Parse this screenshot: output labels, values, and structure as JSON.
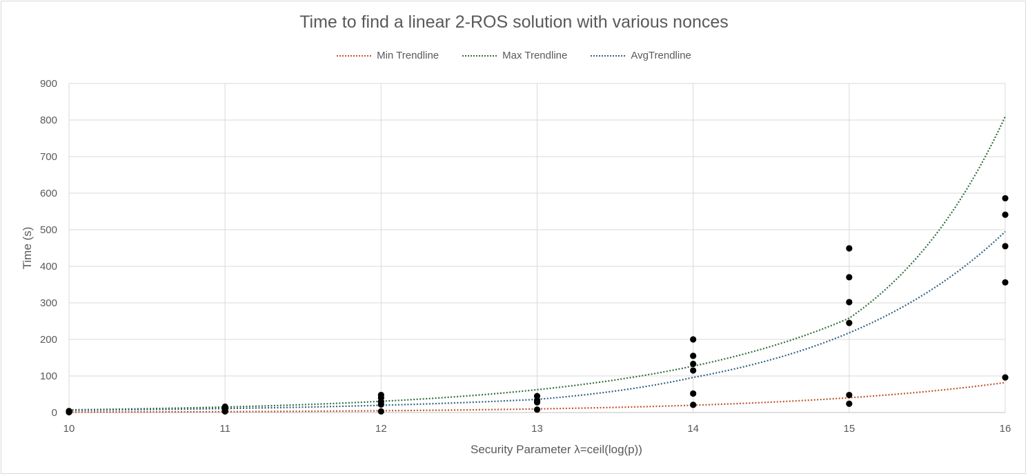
{
  "chart_data": {
    "type": "scatter",
    "title": "Time to find a linear 2-ROS solution with various nonces",
    "xlabel": "Security Parameter λ=ceil(log(p))",
    "ylabel": "Time (s)",
    "xlim": [
      10,
      16
    ],
    "ylim": [
      0,
      900
    ],
    "x_ticks": [
      "10",
      "11",
      "12",
      "13",
      "14",
      "15",
      "16"
    ],
    "y_ticks": [
      "0",
      "100",
      "200",
      "300",
      "400",
      "500",
      "600",
      "700",
      "800",
      "900"
    ],
    "grid": true,
    "legend_position": "top",
    "points": {
      "color": "#000000",
      "x": [
        10,
        10,
        10,
        10,
        11,
        11,
        11,
        11,
        12,
        12,
        12,
        12,
        12,
        13,
        13,
        13,
        13,
        14,
        14,
        14,
        14,
        14,
        14,
        15,
        15,
        15,
        15,
        15,
        15,
        16,
        16,
        16,
        16,
        16
      ],
      "y": [
        1,
        2,
        3,
        4,
        3,
        6,
        10,
        16,
        3,
        22,
        30,
        40,
        48,
        8,
        28,
        34,
        45,
        21,
        52,
        115,
        133,
        155,
        200,
        24,
        48,
        245,
        302,
        370,
        449,
        96,
        356,
        455,
        541,
        586
      ]
    },
    "trendlines": [
      {
        "name": "Min Trendline",
        "color": "#c0522a",
        "x": [
          10,
          11,
          12,
          13,
          14,
          15,
          16
        ],
        "y": [
          1.2,
          2.4,
          4.9,
          9.9,
          20,
          40.5,
          82
        ]
      },
      {
        "name": "Max Trendline",
        "color": "#2e6e3a",
        "x": [
          10,
          11,
          12,
          13,
          14,
          15,
          16
        ],
        "y": [
          7.4,
          15.1,
          30.7,
          62.5,
          127,
          258,
          810
        ]
      },
      {
        "name": "AvgTrendline",
        "color": "#2f6183",
        "x": [
          10,
          11,
          12,
          13,
          14,
          15,
          16
        ],
        "y": [
          6,
          10.9,
          19.8,
          36,
          96,
          218,
          495
        ]
      }
    ],
    "legend_labels": [
      "Min Trendline",
      "Max Trendline",
      "AvgTrendline"
    ]
  }
}
